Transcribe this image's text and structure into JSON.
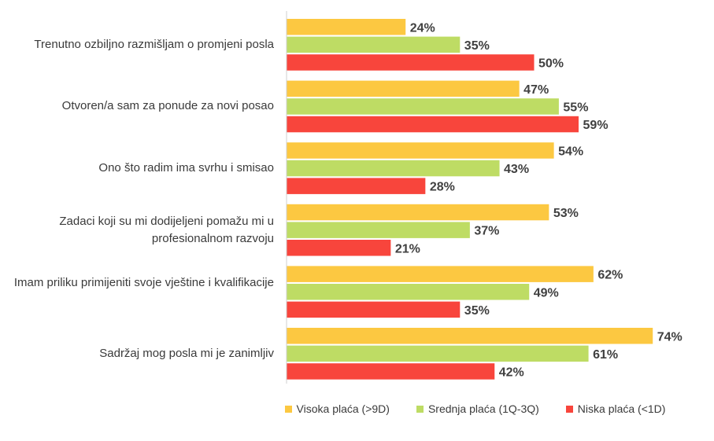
{
  "chart_data": {
    "type": "bar",
    "orientation": "horizontal",
    "categories": [
      "Trenutno ozbiljno razmišljam o promjeni posla",
      "Otvoren/a sam za ponude za novi posao",
      "Ono što radim ima svrhu i smisao",
      "Zadaci koji su mi dodijeljeni pomažu mi u profesionalnom razvoju",
      "Imam priliku primijeniti svoje vještine i kvalifikacije",
      "Sadržaj mog posla mi je zanimljiv"
    ],
    "series": [
      {
        "name": "Visoka plaća (>9D)",
        "color": "#FCC841",
        "values": [
          24,
          47,
          54,
          53,
          62,
          74
        ]
      },
      {
        "name": "Srednja plaća (1Q-3Q)",
        "color": "#BEDC64",
        "values": [
          35,
          55,
          43,
          37,
          49,
          61
        ]
      },
      {
        "name": "Niska plaća (<1D)",
        "color": "#F8453C",
        "values": [
          50,
          59,
          28,
          21,
          35,
          42
        ]
      }
    ],
    "value_suffix": "%",
    "xlim": [
      0,
      80
    ],
    "grid": false,
    "legend_position": "bottom"
  }
}
